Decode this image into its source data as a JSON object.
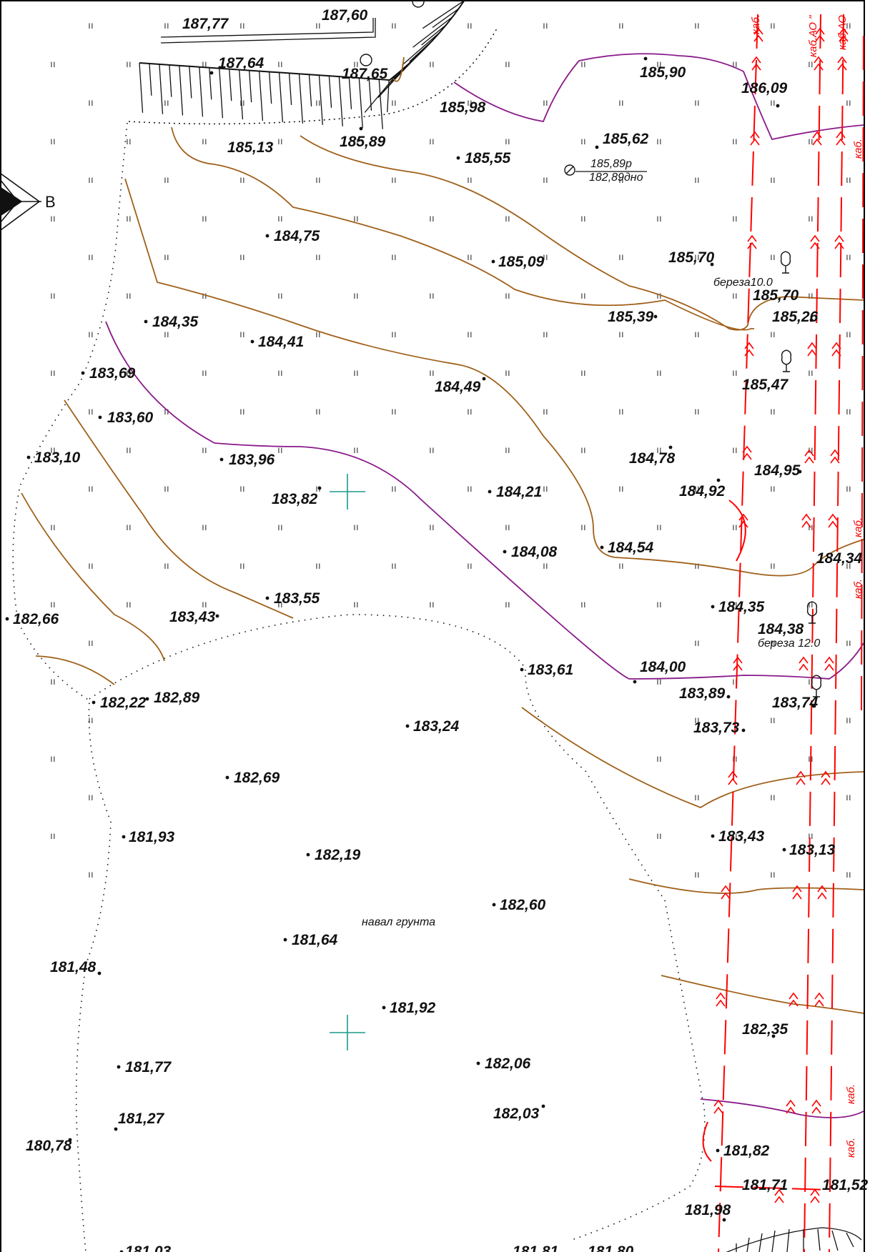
{
  "compass": {
    "letter": "В",
    "icon": "north-arrow-icon"
  },
  "colors": {
    "contour": "#a0601a",
    "index_contour": "#8a1a8a",
    "cable": "#ff0000",
    "grid_cross": "#1a9a8a",
    "boundary": "#111111"
  },
  "elevations": [
    "187,77",
    "187,60",
    "187,64",
    "187,65",
    "185,90",
    "186,09",
    "185,98",
    "185,13",
    "185,89",
    "185,55",
    "185,62",
    "184,75",
    "185,09",
    "185,70",
    "185,70",
    "185,26",
    "184,35",
    "184,41",
    "185,39",
    "183,69",
    "184,49",
    "185,47",
    "183,60",
    "183,10",
    "183,96",
    "184,78",
    "184,95",
    "183,82",
    "184,21",
    "184,92",
    "184,08",
    "184,54",
    "184,34",
    "183,55",
    "183,43",
    "182,66",
    "184,35",
    "184,38",
    "183,61",
    "184,00",
    "182,22",
    "182,89",
    "183,89",
    "183,74",
    "183,24",
    "183,73",
    "182,69",
    "181,93",
    "183,43",
    "183,13",
    "182,19",
    "182,60",
    "181,64",
    "181,48",
    "181,92",
    "182,35",
    "181,77",
    "182,06",
    "181,27",
    "182,03",
    "180,78",
    "181,82",
    "181,71",
    "181,52",
    "181,98",
    "181,03",
    "181,81",
    "181,80"
  ],
  "well": {
    "top": "185,89р",
    "bottom": "182,89дно"
  },
  "trees": [
    "береза10.0",
    "береза 12.0"
  ],
  "fill_area_label": "навал грунта",
  "cable_labels": [
    "каб.",
    "каб.АО \"",
    "каб.АО",
    "каб.",
    "каб.",
    "каб.",
    "каб.",
    "каб.",
    "каб."
  ]
}
